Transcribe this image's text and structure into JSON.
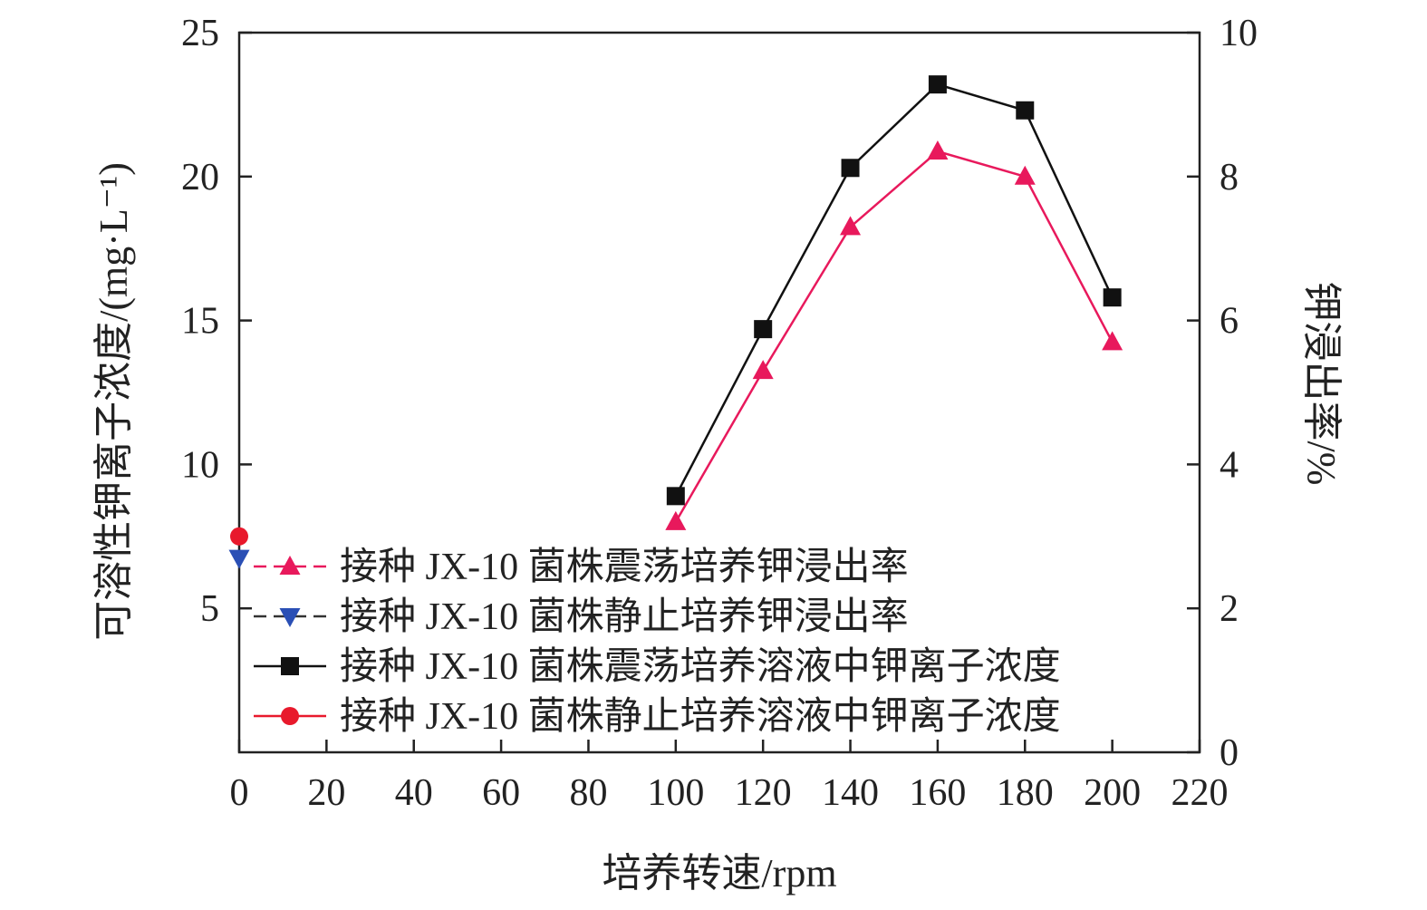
{
  "chart_data": {
    "type": "line",
    "x_axis": {
      "label": "培养转速/rpm",
      "min": 0,
      "max": 220,
      "ticks": [
        0,
        20,
        40,
        60,
        80,
        100,
        120,
        140,
        160,
        180,
        200,
        220
      ]
    },
    "y_left": {
      "label": "可溶性钾离子浓度/(mg·L⁻¹)",
      "min": 0,
      "max": 25,
      "ticks": [
        5,
        10,
        15,
        20,
        25
      ]
    },
    "y_right": {
      "label": "钾浸出率/%",
      "min": 0,
      "max": 10,
      "ticks": [
        0,
        2,
        4,
        6,
        8,
        10
      ]
    },
    "grid": false,
    "legend_position": "bottom-left",
    "series": [
      {
        "name": "接种 JX-10 菌株震荡培养钾浸出率",
        "axis": "right",
        "marker": "triangle-up",
        "color": "#e8195c",
        "line": "dashed",
        "x": [
          100,
          120,
          140,
          160,
          180,
          200
        ],
        "y": [
          3.2,
          5.3,
          7.3,
          8.35,
          8.0,
          5.7
        ]
      },
      {
        "name": "接种 JX-10 菌株静止培养钾浸出率",
        "axis": "right",
        "marker": "triangle-down",
        "color": "#2a4fb5",
        "line": "dashed",
        "x": [
          0
        ],
        "y": [
          2.7
        ]
      },
      {
        "name": "接种 JX-10 菌株震荡培养溶液中钾离子浓度",
        "axis": "left",
        "marker": "square",
        "color": "#111111",
        "line": "solid",
        "x": [
          100,
          120,
          140,
          160,
          180,
          200
        ],
        "y": [
          8.9,
          14.7,
          20.3,
          23.2,
          22.3,
          15.8
        ]
      },
      {
        "name": "接种 JX-10 菌株静止培养溶液中钾离子浓度",
        "axis": "left",
        "marker": "circle",
        "color": "#e8192c",
        "line": "solid",
        "x": [
          0
        ],
        "y": [
          7.5
        ]
      }
    ]
  }
}
